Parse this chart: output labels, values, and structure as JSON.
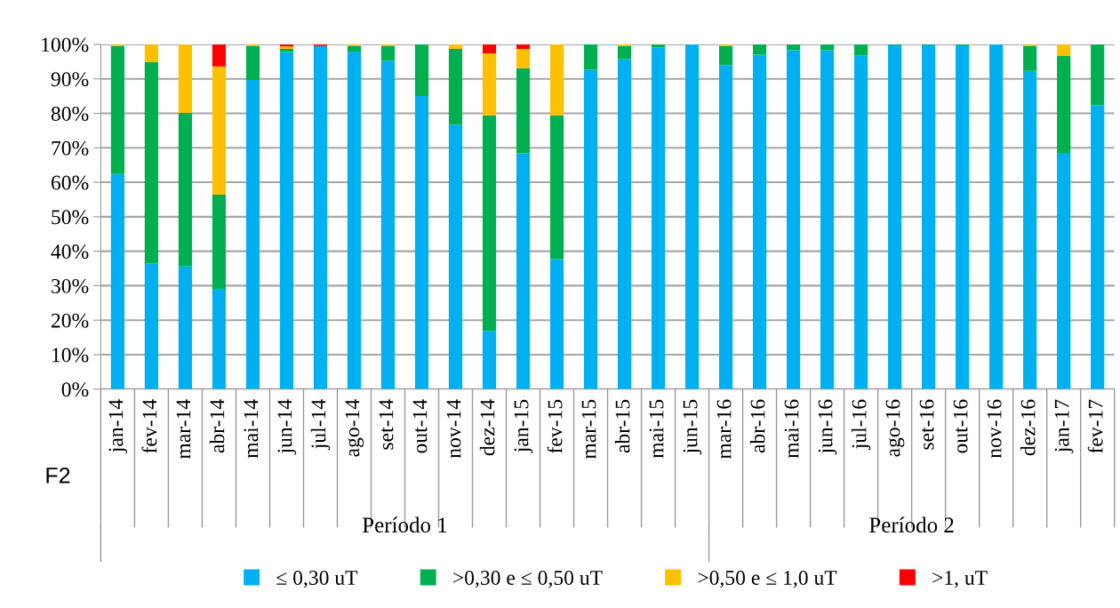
{
  "chart_data": {
    "type": "bar",
    "stacked": true,
    "categories": [
      "jan-14",
      "fev-14",
      "mar-14",
      "abr-14",
      "mai-14",
      "jun-14",
      "jul-14",
      "ago-14",
      "set-14",
      "out-14",
      "nov-14",
      "dez-14",
      "jan-15",
      "fev-15",
      "mar-15",
      "abr-15",
      "mai-15",
      "jun-15",
      "mar-16",
      "abr-16",
      "mai-16",
      "jun-16",
      "jul-16",
      "ago-16",
      "set-16",
      "out-16",
      "nov-16",
      "dez-16",
      "jan-17",
      "fev-17"
    ],
    "series": [
      {
        "name": "≤ 0,30 uT",
        "color": "#00b0f0",
        "values": [
          62.4,
          36.5,
          35.6,
          29.1,
          89.7,
          97.8,
          99.5,
          97.9,
          95.3,
          85.0,
          76.7,
          16.9,
          68.4,
          37.7,
          92.7,
          95.7,
          99.1,
          100,
          94.0,
          97.0,
          98.3,
          98.3,
          96.8,
          99.7,
          99.7,
          99.7,
          100,
          92.3,
          68.5,
          82.4
        ]
      },
      {
        "name": ">0,30 e ≤ 0,50 uT",
        "color": "#00b050",
        "values": [
          37.2,
          58.3,
          44.5,
          27.3,
          9.9,
          0.9,
          0,
          1.7,
          4.3,
          15.0,
          22.0,
          62.5,
          24.7,
          41.7,
          7.3,
          3.9,
          0.9,
          0,
          5.6,
          3.0,
          1.7,
          1.7,
          3.2,
          0.3,
          0.3,
          0.3,
          0,
          7.3,
          28.1,
          17.6
        ]
      },
      {
        "name": ">0,50 e ≤ 1,0 uT",
        "color": "#ffc000",
        "values": [
          0.4,
          5.2,
          19.9,
          37.2,
          0.4,
          0.7,
          0,
          0.4,
          0.4,
          0,
          1.3,
          18.0,
          5.6,
          20.6,
          0,
          0.4,
          0,
          0,
          0.4,
          0,
          0,
          0,
          0,
          0,
          0,
          0,
          0,
          0.4,
          3.4,
          0
        ]
      },
      {
        "name": ">1, uT",
        "color": "#ff0000",
        "values": [
          0,
          0,
          0,
          6.4,
          0,
          0.6,
          0.5,
          0,
          0,
          0,
          0,
          2.6,
          1.3,
          0,
          0,
          0,
          0,
          0,
          0,
          0,
          0,
          0,
          0,
          0,
          0,
          0,
          0,
          0,
          0,
          0
        ]
      }
    ],
    "ylim": [
      0,
      100
    ],
    "yticks": [
      {
        "value": 0,
        "label": "0%"
      },
      {
        "value": 10,
        "label": "10%"
      },
      {
        "value": 20,
        "label": "20%"
      },
      {
        "value": 30,
        "label": "30%"
      },
      {
        "value": 40,
        "label": "40%"
      },
      {
        "value": 50,
        "label": "50%"
      },
      {
        "value": 60,
        "label": "60%"
      },
      {
        "value": 70,
        "label": "70%"
      },
      {
        "value": 80,
        "label": "80%"
      },
      {
        "value": 90,
        "label": "90%"
      },
      {
        "value": 100,
        "label": "100%"
      }
    ],
    "grid": "y",
    "legend": "bottom",
    "annotations": [
      "Período 1",
      "Período 2",
      "F2"
    ]
  }
}
